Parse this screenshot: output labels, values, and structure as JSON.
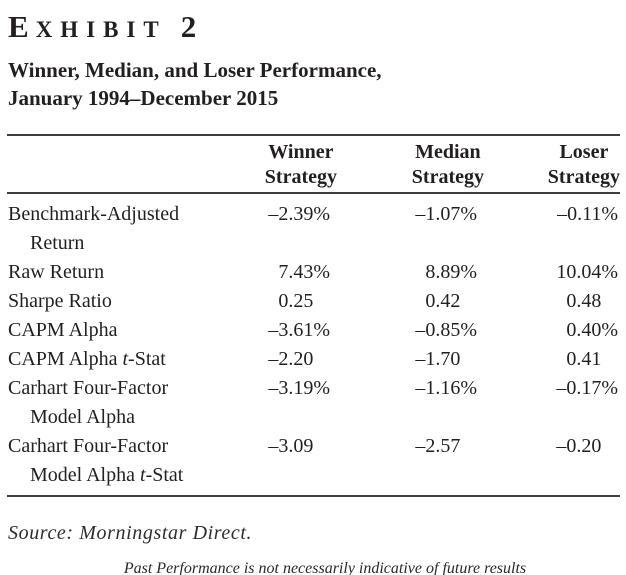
{
  "colors": {
    "ink": "#231f20",
    "rule": "#3e3e3e"
  },
  "exhibit": {
    "label_initial": "E",
    "label_rest": "XHIBIT",
    "number": "2",
    "title_line1": "Winner, Median, and Loser Performance,",
    "title_line2": "January 1994–December 2015"
  },
  "table": {
    "columns": [
      {
        "line1": "Winner",
        "line2": "Strategy"
      },
      {
        "line1": "Median",
        "line2": "Strategy"
      },
      {
        "line1": "Loser",
        "line2": "Strategy"
      }
    ],
    "rows": [
      {
        "label": [
          [
            {
              "text": "Benchmark-Adjusted"
            }
          ],
          [
            {
              "text": "Return"
            }
          ]
        ],
        "values": [
          "–2.39%",
          "–1.07%",
          "–0.11%"
        ]
      },
      {
        "label": [
          [
            {
              "text": "Raw Return"
            }
          ]
        ],
        "values": [
          "7.43%",
          "8.89%",
          "10.04%"
        ]
      },
      {
        "label": [
          [
            {
              "text": "Sharpe Ratio"
            }
          ]
        ],
        "values": [
          "0.25",
          "0.42",
          "0.48"
        ]
      },
      {
        "label": [
          [
            {
              "text": "CAPM Alpha"
            }
          ]
        ],
        "values": [
          "–3.61%",
          "–0.85%",
          "0.40%"
        ]
      },
      {
        "label": [
          [
            {
              "text": "CAPM Alpha "
            },
            {
              "text": "t",
              "italic": true
            },
            {
              "text": "-Stat"
            }
          ]
        ],
        "values": [
          "–2.20",
          "–1.70",
          "0.41"
        ]
      },
      {
        "label": [
          [
            {
              "text": "Carhart Four-Factor"
            }
          ],
          [
            {
              "text": "Model Alpha"
            }
          ]
        ],
        "values": [
          "–3.19%",
          "–1.16%",
          "–0.17%"
        ]
      },
      {
        "label": [
          [
            {
              "text": "Carhart Four-Factor"
            }
          ],
          [
            {
              "text": "Model Alpha "
            },
            {
              "text": "t",
              "italic": true
            },
            {
              "text": "-Stat"
            }
          ]
        ],
        "values": [
          "–3.09",
          "–2.57",
          "–0.20"
        ]
      }
    ]
  },
  "footer": {
    "source": "Source: Morningstar Direct.",
    "disclaimer": "Past Performance is not necessarily indicative of future results"
  }
}
